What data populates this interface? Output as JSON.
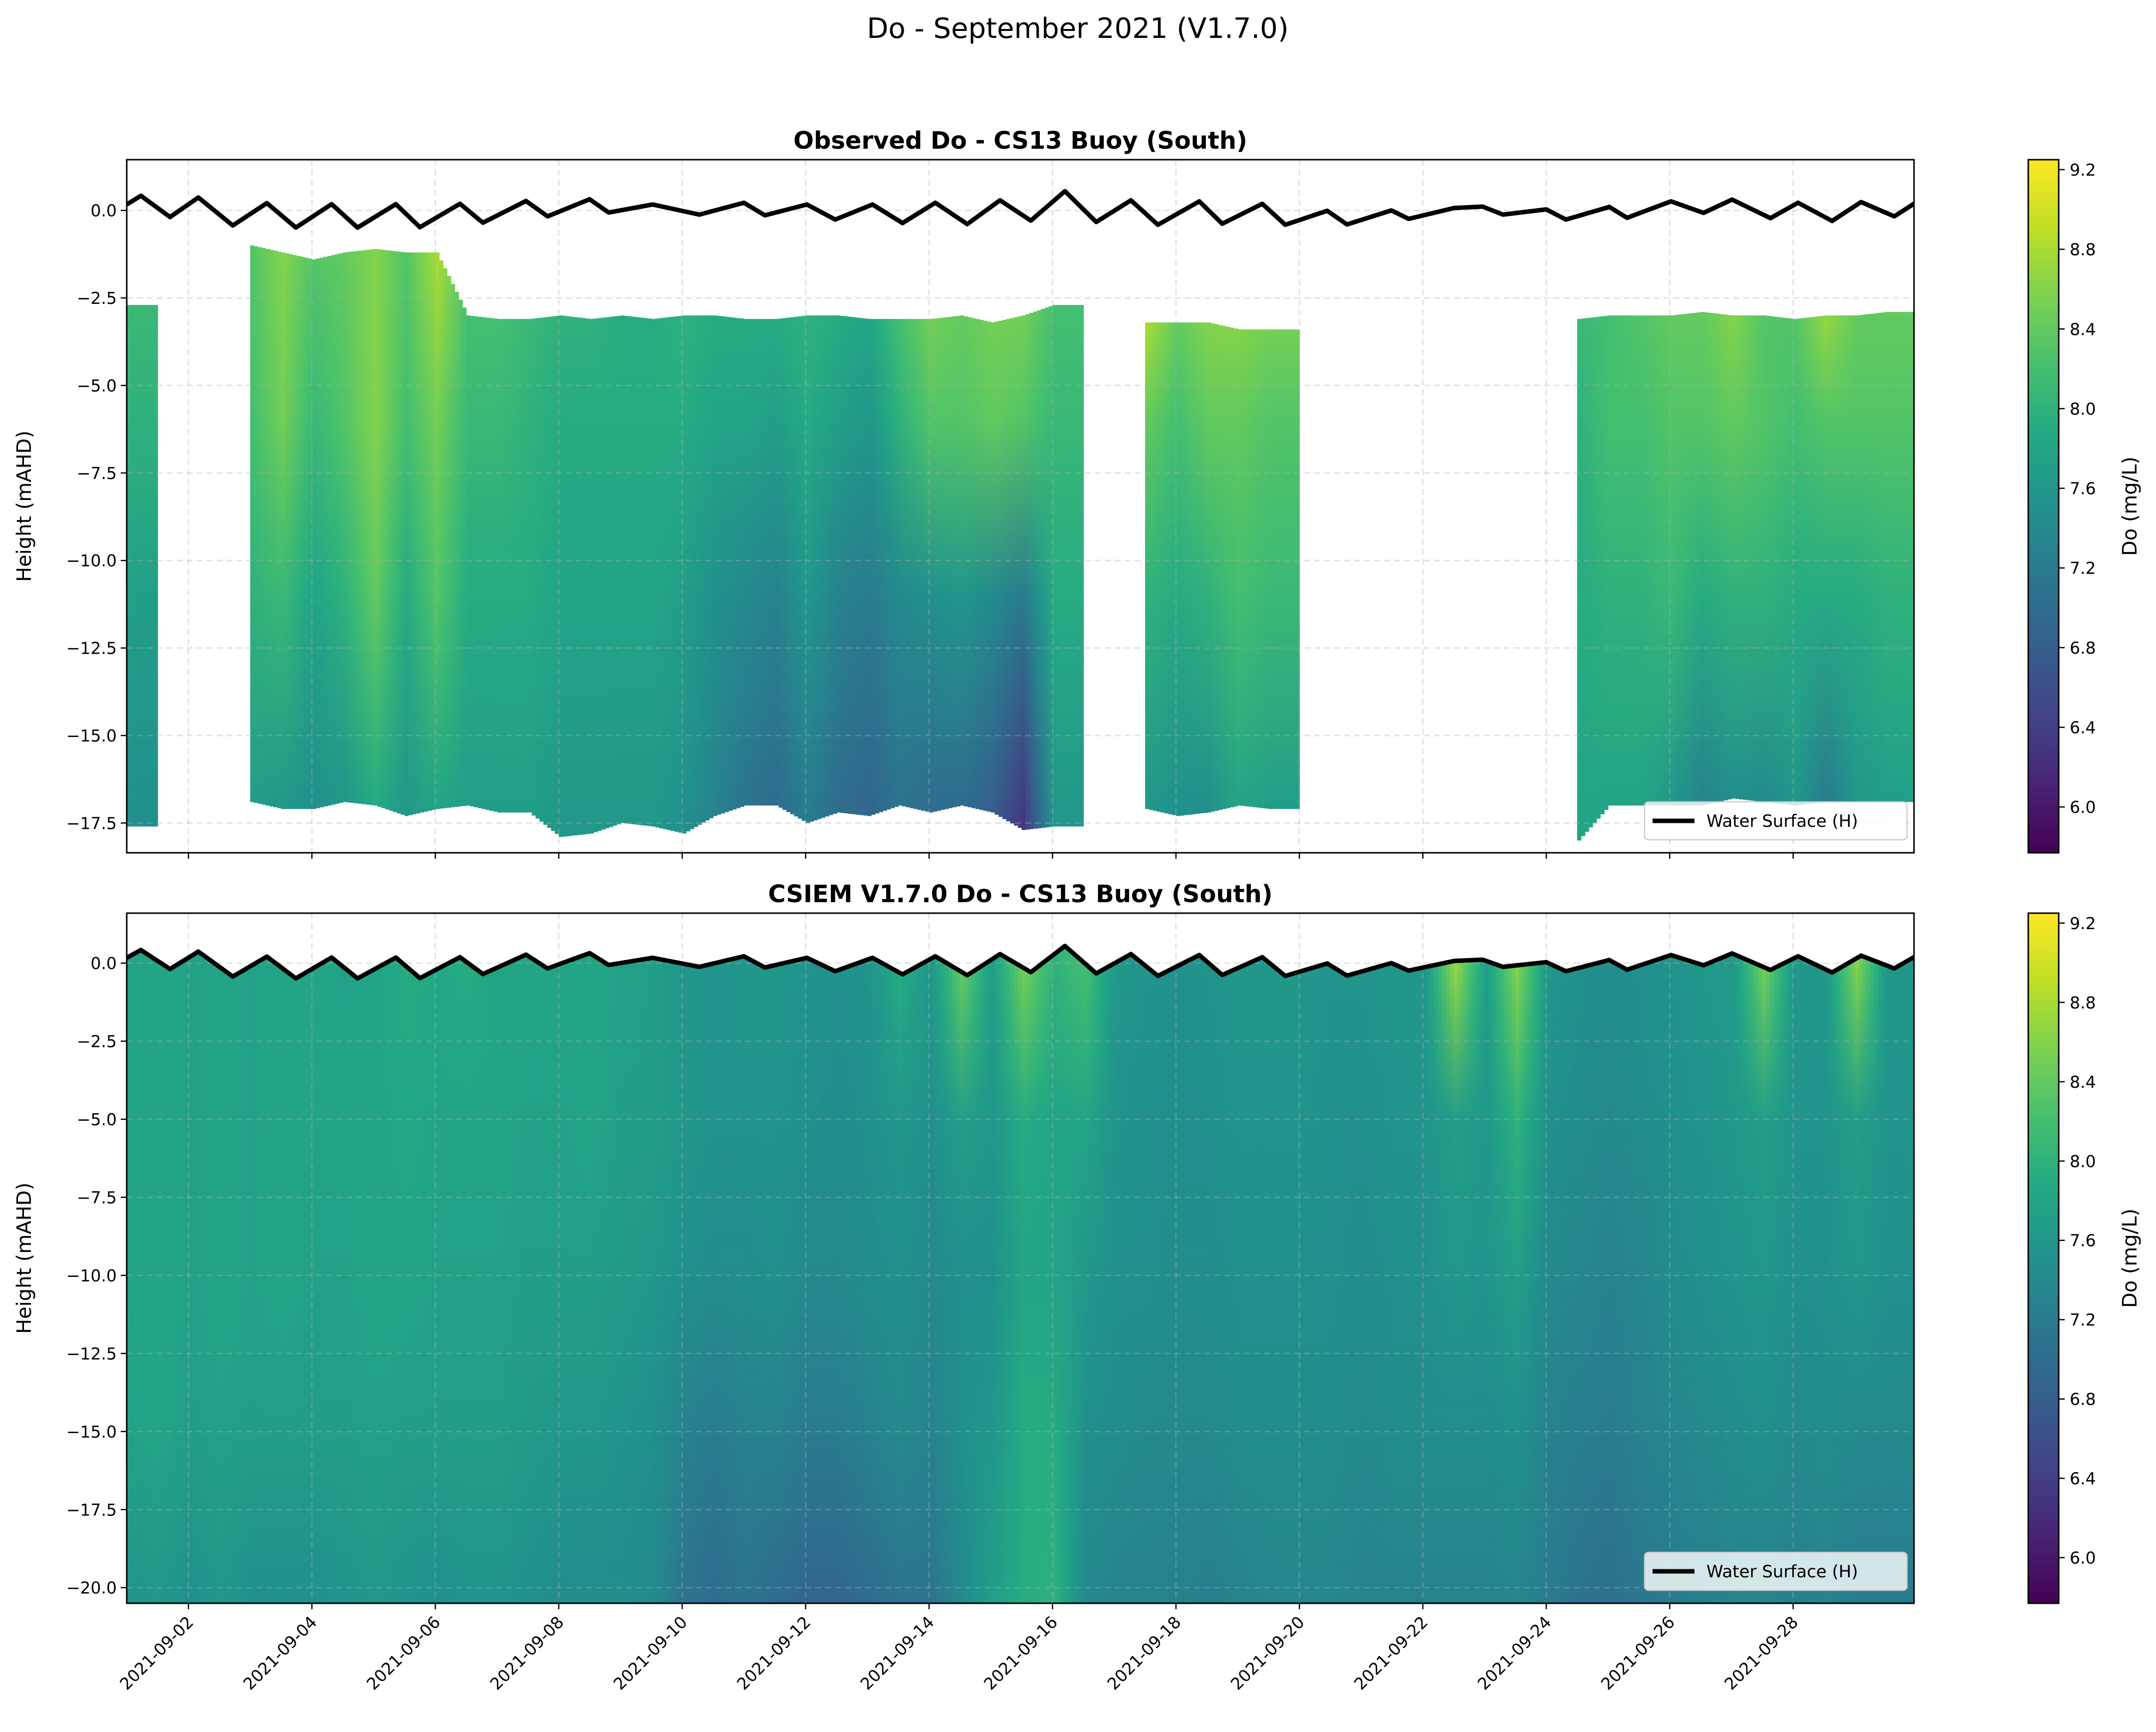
{
  "suptitle": "Do - September 2021 (V1.7.0)",
  "chart_data": [
    {
      "type": "heatmap",
      "title": "Observed Do - CS13 Buoy (South)",
      "ylabel": "Height (mAHD)",
      "xlim": [
        "2021-09-01 00:00",
        "2021-09-29 23:00"
      ],
      "ylim": [
        -18.35,
        1.45
      ],
      "yticks": [
        "0.0",
        "−2.5",
        "−5.0",
        "−7.5",
        "−10.0",
        "−12.5",
        "−15.0",
        "−17.5"
      ],
      "ytick_values": [
        0,
        -2.5,
        -5,
        -7.5,
        -10,
        -12.5,
        -15,
        -17.5
      ],
      "xticks": [
        "2021-09-02",
        "2021-09-04",
        "2021-09-06",
        "2021-09-08",
        "2021-09-10",
        "2021-09-12",
        "2021-09-14",
        "2021-09-16",
        "2021-09-18",
        "2021-09-20",
        "2021-09-22",
        "2021-09-24",
        "2021-09-26",
        "2021-09-28"
      ],
      "xtick_labels_shown": false,
      "grid": true,
      "legend": {
        "entries": [
          "Water Surface (H)"
        ],
        "placement": "lower-right"
      },
      "colorbar": {
        "label": "Do (mg/L)",
        "range": [
          5.77,
          9.25
        ],
        "ticks": [
          "6.0",
          "6.4",
          "6.8",
          "7.2",
          "7.6",
          "8.0",
          "8.4",
          "8.8",
          "9.2"
        ],
        "colormap": "viridis"
      },
      "grid_time_start": "2021-09-01 00:00",
      "grid_step_hours": 12,
      "column_fields": [
        "top_mAHD",
        "bottom_mAHD",
        "do_top",
        "do_at_-6m",
        "do_at_-11m",
        "do_bottom"
      ],
      "columns": [
        [
          -2.7,
          -17.6,
          8.1,
          8.0,
          7.7,
          7.5
        ],
        null,
        null,
        null,
        [
          -1.0,
          -16.9,
          8.3,
          8.2,
          8.0,
          7.7
        ],
        [
          -1.2,
          -17.1,
          8.6,
          8.5,
          8.1,
          7.6
        ],
        [
          -1.4,
          -17.1,
          8.3,
          8.1,
          7.8,
          7.5
        ],
        [
          -1.2,
          -16.9,
          8.4,
          8.3,
          8.0,
          7.6
        ],
        [
          -1.1,
          -17.0,
          8.6,
          8.6,
          8.4,
          7.9
        ],
        [
          -1.2,
          -17.3,
          8.3,
          8.2,
          7.9,
          7.6
        ],
        [
          -1.2,
          -17.1,
          8.8,
          8.5,
          8.3,
          7.8
        ],
        [
          -3.0,
          -17.0,
          8.2,
          8.1,
          7.9,
          7.7
        ],
        [
          -3.1,
          -17.2,
          8.2,
          8.1,
          7.9,
          7.7
        ],
        [
          -3.1,
          -17.2,
          8.1,
          8.0,
          7.9,
          7.7
        ],
        [
          -3.0,
          -17.9,
          8.0,
          7.9,
          7.8,
          7.6
        ],
        [
          -3.1,
          -17.8,
          8.0,
          7.9,
          7.8,
          7.6
        ],
        [
          -3.0,
          -17.5,
          7.9,
          7.9,
          7.8,
          7.6
        ],
        [
          -3.1,
          -17.6,
          7.9,
          7.9,
          7.8,
          7.6
        ],
        [
          -3.0,
          -17.8,
          8.0,
          7.9,
          7.7,
          7.5
        ],
        [
          -3.0,
          -17.3,
          7.9,
          7.8,
          7.5,
          7.3
        ],
        [
          -3.1,
          -17.0,
          7.9,
          7.8,
          7.4,
          7.1
        ],
        [
          -3.1,
          -17.0,
          7.9,
          7.7,
          7.3,
          7.0
        ],
        [
          -3.0,
          -17.5,
          8.0,
          7.9,
          7.6,
          7.2
        ],
        [
          -3.0,
          -17.2,
          7.9,
          7.7,
          7.3,
          7.0
        ],
        [
          -3.1,
          -17.3,
          7.8,
          7.6,
          7.2,
          6.9
        ],
        [
          -3.1,
          -17.0,
          8.2,
          8.0,
          7.4,
          7.1
        ],
        [
          -3.1,
          -17.2,
          8.5,
          8.3,
          7.5,
          7.0
        ],
        [
          -3.0,
          -17.0,
          8.4,
          8.3,
          7.6,
          7.0
        ],
        [
          -3.2,
          -17.2,
          8.5,
          8.4,
          7.4,
          6.8
        ],
        [
          -3.0,
          -17.7,
          8.5,
          8.3,
          7.2,
          6.3
        ],
        [
          -2.7,
          -17.6,
          8.2,
          8.1,
          7.9,
          7.6
        ],
        null,
        null,
        [
          -3.2,
          -17.1,
          8.8,
          8.4,
          8.0,
          7.6
        ],
        [
          -3.2,
          -17.3,
          8.4,
          8.2,
          7.9,
          7.5
        ],
        [
          -3.2,
          -17.2,
          8.6,
          8.4,
          8.0,
          7.5
        ],
        [
          -3.4,
          -17.0,
          8.6,
          8.4,
          8.2,
          7.8
        ],
        [
          -3.4,
          -17.1,
          8.5,
          8.3,
          8.1,
          7.7
        ],
        null,
        null,
        null,
        null,
        null,
        null,
        null,
        null,
        null,
        [
          -3.1,
          -18.0,
          8.1,
          8.0,
          7.9,
          7.8
        ],
        [
          -3.0,
          -17.0,
          8.2,
          8.2,
          8.0,
          7.8
        ],
        [
          -3.0,
          -17.0,
          8.3,
          8.2,
          8.0,
          7.8
        ],
        [
          -3.0,
          -17.0,
          8.4,
          8.3,
          8.1,
          7.6
        ],
        [
          -2.9,
          -17.0,
          8.4,
          8.3,
          7.9,
          7.3
        ],
        [
          -3.0,
          -16.8,
          8.6,
          8.4,
          8.0,
          7.5
        ],
        [
          -3.0,
          -16.9,
          8.3,
          8.3,
          8.0,
          7.4
        ],
        [
          -3.1,
          -17.0,
          8.3,
          8.2,
          7.9,
          7.6
        ],
        [
          -3.0,
          -16.9,
          8.7,
          8.3,
          7.9,
          7.2
        ],
        [
          -3.0,
          -16.9,
          8.4,
          8.3,
          7.9,
          7.6
        ],
        [
          -2.9,
          -16.9,
          8.4,
          8.3,
          8.0,
          7.7
        ]
      ]
    },
    {
      "type": "heatmap",
      "title": "CSIEM V1.7.0 Do - CS13 Buoy (South)",
      "ylabel": "Height (mAHD)",
      "xlim": [
        "2021-09-01 00:00",
        "2021-09-29 23:00"
      ],
      "ylim": [
        -20.5,
        1.6
      ],
      "yticks": [
        "0.0",
        "−2.5",
        "−5.0",
        "−7.5",
        "−10.0",
        "−12.5",
        "−15.0",
        "−17.5",
        "−20.0"
      ],
      "ytick_values": [
        0,
        -2.5,
        -5,
        -7.5,
        -10,
        -12.5,
        -15,
        -17.5,
        -20
      ],
      "xticks": [
        "2021-09-02",
        "2021-09-04",
        "2021-09-06",
        "2021-09-08",
        "2021-09-10",
        "2021-09-12",
        "2021-09-14",
        "2021-09-16",
        "2021-09-18",
        "2021-09-20",
        "2021-09-22",
        "2021-09-24",
        "2021-09-26",
        "2021-09-28"
      ],
      "xtick_labels_shown": true,
      "grid": true,
      "legend": {
        "entries": [
          "Water Surface (H)"
        ],
        "placement": "lower-right"
      },
      "colorbar": {
        "label": "Do (mg/L)",
        "range": [
          5.77,
          9.25
        ],
        "ticks": [
          "6.0",
          "6.4",
          "6.8",
          "7.2",
          "7.6",
          "8.0",
          "8.4",
          "8.8",
          "9.2"
        ],
        "colormap": "viridis"
      },
      "grid_time_start": "2021-09-01 00:00",
      "grid_step_hours": 12,
      "depth_levels_mAHD": [
        0,
        -5,
        -10,
        -15,
        -20.5
      ],
      "columns": [
        [
          7.8,
          7.8,
          7.8,
          7.75,
          7.55
        ],
        [
          7.8,
          7.8,
          7.8,
          7.8,
          7.6
        ],
        [
          7.75,
          7.75,
          7.75,
          7.7,
          7.5
        ],
        [
          7.8,
          7.8,
          7.8,
          7.75,
          7.6
        ],
        [
          7.75,
          7.75,
          7.75,
          7.7,
          7.5
        ],
        [
          7.8,
          7.8,
          7.8,
          7.7,
          7.5
        ],
        [
          7.8,
          7.8,
          7.75,
          7.7,
          7.5
        ],
        [
          7.75,
          7.8,
          7.75,
          7.7,
          7.55
        ],
        [
          7.8,
          7.8,
          7.8,
          7.75,
          7.6
        ],
        [
          7.9,
          7.85,
          7.8,
          7.7,
          7.55
        ],
        [
          7.85,
          7.8,
          7.75,
          7.7,
          7.5
        ],
        [
          7.9,
          7.8,
          7.75,
          7.7,
          7.55
        ],
        [
          7.8,
          7.8,
          7.75,
          7.7,
          7.55
        ],
        [
          7.8,
          7.75,
          7.7,
          7.65,
          7.5
        ],
        [
          7.8,
          7.75,
          7.7,
          7.6,
          7.45
        ],
        [
          7.8,
          7.8,
          7.7,
          7.6,
          7.45
        ],
        [
          7.75,
          7.7,
          7.65,
          7.55,
          7.45
        ],
        [
          7.7,
          7.7,
          7.6,
          7.5,
          7.4
        ],
        [
          7.6,
          7.6,
          7.5,
          7.3,
          7.1
        ],
        [
          7.55,
          7.55,
          7.45,
          7.2,
          7.0
        ],
        [
          7.6,
          7.55,
          7.45,
          7.3,
          7.1
        ],
        [
          7.6,
          7.55,
          7.5,
          7.3,
          7.0
        ],
        [
          7.55,
          7.5,
          7.4,
          7.2,
          6.9
        ],
        [
          7.5,
          7.45,
          7.4,
          7.2,
          6.9
        ],
        [
          7.55,
          7.5,
          7.45,
          7.3,
          7.0
        ],
        [
          7.9,
          7.6,
          7.5,
          7.4,
          7.1
        ],
        [
          7.6,
          7.5,
          7.4,
          7.3,
          7.1
        ],
        [
          8.4,
          7.7,
          7.5,
          7.5,
          7.4
        ],
        [
          7.7,
          7.6,
          7.5,
          7.6,
          7.7
        ],
        [
          8.5,
          7.9,
          7.8,
          7.9,
          7.9
        ],
        [
          8.0,
          7.8,
          7.8,
          7.9,
          8.0
        ],
        [
          8.2,
          7.8,
          7.6,
          7.5,
          7.4
        ],
        [
          7.6,
          7.55,
          7.5,
          7.45,
          7.3
        ],
        [
          7.55,
          7.5,
          7.5,
          7.4,
          7.3
        ],
        [
          7.5,
          7.5,
          7.45,
          7.4,
          7.3
        ],
        [
          7.55,
          7.5,
          7.45,
          7.4,
          7.25
        ],
        [
          7.6,
          7.55,
          7.5,
          7.45,
          7.3
        ],
        [
          7.6,
          7.55,
          7.5,
          7.45,
          7.35
        ],
        [
          7.6,
          7.55,
          7.5,
          7.45,
          7.35
        ],
        [
          7.55,
          7.5,
          7.5,
          7.45,
          7.35
        ],
        [
          7.55,
          7.5,
          7.45,
          7.4,
          7.3
        ],
        [
          7.6,
          7.55,
          7.5,
          7.45,
          7.3
        ],
        [
          7.6,
          7.55,
          7.5,
          7.45,
          7.3
        ],
        [
          8.7,
          7.7,
          7.6,
          7.45,
          7.3
        ],
        [
          7.7,
          7.6,
          7.55,
          7.45,
          7.3
        ],
        [
          8.6,
          8.0,
          7.7,
          7.5,
          7.35
        ],
        [
          7.6,
          7.5,
          7.4,
          7.3,
          7.2
        ],
        [
          7.5,
          7.45,
          7.35,
          7.25,
          7.1
        ],
        [
          7.45,
          7.4,
          7.3,
          7.2,
          7.05
        ],
        [
          7.5,
          7.45,
          7.35,
          7.3,
          7.15
        ],
        [
          7.55,
          7.5,
          7.45,
          7.35,
          7.2
        ],
        [
          7.6,
          7.55,
          7.5,
          7.4,
          7.25
        ],
        [
          7.65,
          7.6,
          7.55,
          7.45,
          7.3
        ],
        [
          8.5,
          7.7,
          7.6,
          7.5,
          7.3
        ],
        [
          7.6,
          7.55,
          7.5,
          7.4,
          7.25
        ],
        [
          7.6,
          7.55,
          7.5,
          7.45,
          7.3
        ],
        [
          8.6,
          7.7,
          7.6,
          7.4,
          7.2
        ],
        [
          7.6,
          7.55,
          7.5,
          7.4,
          7.2
        ]
      ]
    }
  ],
  "water_surface": {
    "label": "Water Surface (H)",
    "color": "#000000",
    "points": [
      [
        "2021-09-01 00:00",
        0.17
      ],
      [
        "2021-09-01 05:30",
        0.42
      ],
      [
        "2021-09-01 16:50",
        -0.19
      ],
      [
        "2021-09-02 03:50",
        0.37
      ],
      [
        "2021-09-02 17:15",
        -0.43
      ],
      [
        "2021-09-03 06:30",
        0.21
      ],
      [
        "2021-09-03 17:45",
        -0.49
      ],
      [
        "2021-09-04 07:40",
        0.18
      ],
      [
        "2021-09-04 17:45",
        -0.49
      ],
      [
        "2021-09-05 08:40",
        0.18
      ],
      [
        "2021-09-05 18:00",
        -0.48
      ],
      [
        "2021-09-06 09:35",
        0.19
      ],
      [
        "2021-09-06 18:30",
        -0.35
      ],
      [
        "2021-09-07 11:15",
        0.27
      ],
      [
        "2021-09-07 19:40",
        -0.17
      ],
      [
        "2021-09-08 12:00",
        0.32
      ],
      [
        "2021-09-08 19:25",
        -0.06
      ],
      [
        "2021-09-09 12:30",
        0.17
      ],
      [
        "2021-09-10 06:40",
        -0.12
      ],
      [
        "2021-09-11 00:00",
        0.22
      ],
      [
        "2021-09-11 08:10",
        -0.14
      ],
      [
        "2021-09-12 00:30",
        0.17
      ],
      [
        "2021-09-12 11:30",
        -0.26
      ],
      [
        "2021-09-13 02:00",
        0.17
      ],
      [
        "2021-09-13 13:40",
        -0.36
      ],
      [
        "2021-09-14 02:25",
        0.22
      ],
      [
        "2021-09-14 14:50",
        -0.39
      ],
      [
        "2021-09-15 03:35",
        0.29
      ],
      [
        "2021-09-15 15:35",
        -0.29
      ],
      [
        "2021-09-16 04:50",
        0.55
      ],
      [
        "2021-09-16 17:00",
        -0.33
      ],
      [
        "2021-09-17 06:30",
        0.29
      ],
      [
        "2021-09-17 17:00",
        -0.41
      ],
      [
        "2021-09-18 09:05",
        0.26
      ],
      [
        "2021-09-18 18:00",
        -0.38
      ],
      [
        "2021-09-19 09:35",
        0.19
      ],
      [
        "2021-09-19 18:30",
        -0.41
      ],
      [
        "2021-09-20 10:50",
        -0.01
      ],
      [
        "2021-09-20 18:30",
        -0.4
      ],
      [
        "2021-09-21 11:45",
        0.0
      ],
      [
        "2021-09-21 18:30",
        -0.24
      ],
      [
        "2021-09-22 12:15",
        0.07
      ],
      [
        "2021-09-22 23:15",
        0.11
      ],
      [
        "2021-09-23 07:10",
        -0.12
      ],
      [
        "2021-09-24 00:00",
        0.03
      ],
      [
        "2021-09-24 07:40",
        -0.26
      ],
      [
        "2021-09-25 00:30",
        0.1
      ],
      [
        "2021-09-25 07:25",
        -0.21
      ],
      [
        "2021-09-26 00:30",
        0.26
      ],
      [
        "2021-09-26 13:10",
        -0.07
      ],
      [
        "2021-09-27 00:15",
        0.31
      ],
      [
        "2021-09-27 15:10",
        -0.22
      ],
      [
        "2021-09-28 01:55",
        0.22
      ],
      [
        "2021-09-28 15:10",
        -0.3
      ],
      [
        "2021-09-29 02:25",
        0.24
      ],
      [
        "2021-09-29 15:20",
        -0.17
      ],
      [
        "2021-09-30 00:00",
        0.24
      ]
    ]
  }
}
